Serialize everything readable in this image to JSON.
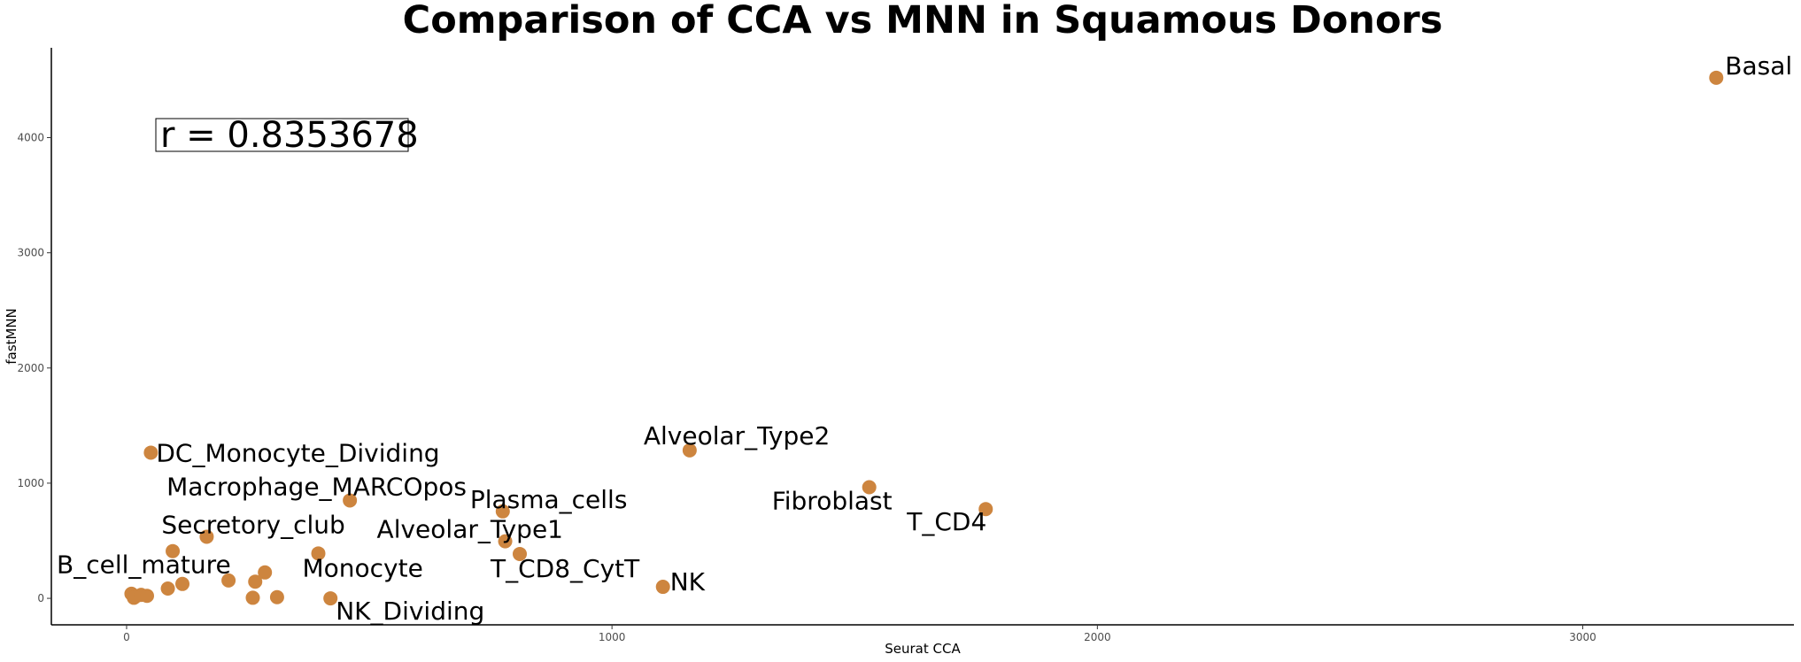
{
  "chart_data": {
    "type": "scatter",
    "title": "Comparison of CCA vs MNN in Squamous Donors",
    "xlabel": "Seurat CCA",
    "ylabel": "fastMNN",
    "xlim": [
      -155,
      3435
    ],
    "ylim": [
      -230,
      4780
    ],
    "xticks": [
      0,
      1000,
      2000,
      3000
    ],
    "yticks": [
      0,
      1000,
      2000,
      3000,
      4000
    ],
    "grid": false,
    "point_color": "#CD853F",
    "annotation": "r = 0.8353678",
    "points": [
      {
        "label": "Basal",
        "x": 3275,
        "y": 4520
      },
      {
        "label": "DC_Monocyte_Dividing",
        "x": 50,
        "y": 1265
      },
      {
        "label": "Alveolar_Type2",
        "x": 1160,
        "y": 1285
      },
      {
        "label": "Macrophage_MARCOpos",
        "x": 460,
        "y": 850
      },
      {
        "label": "Plasma_cells",
        "x": 775,
        "y": 755
      },
      {
        "label": "Fibroblast",
        "x": 1530,
        "y": 965
      },
      {
        "label": "T_CD4",
        "x": 1770,
        "y": 775
      },
      {
        "label": "Secretory_club",
        "x": 165,
        "y": 535
      },
      {
        "label": "Alveolar_Type1",
        "x": 780,
        "y": 495
      },
      {
        "label": "T_CD8_CytT",
        "x": 810,
        "y": 385
      },
      {
        "label": "Monocyte",
        "x": 395,
        "y": 390
      },
      {
        "label": "B_cell_mature",
        "x": 95,
        "y": 410
      },
      {
        "label": "NK",
        "x": 1105,
        "y": 100
      },
      {
        "label": "NK_Dividing",
        "x": 420,
        "y": 0
      },
      {
        "label": "",
        "x": 10,
        "y": 40
      },
      {
        "label": "",
        "x": 20,
        "y": 20
      },
      {
        "label": "",
        "x": 15,
        "y": 5
      },
      {
        "label": "",
        "x": 30,
        "y": 30
      },
      {
        "label": "",
        "x": 42,
        "y": 22
      },
      {
        "label": "",
        "x": 85,
        "y": 85
      },
      {
        "label": "",
        "x": 115,
        "y": 125
      },
      {
        "label": "",
        "x": 210,
        "y": 155
      },
      {
        "label": "",
        "x": 265,
        "y": 145
      },
      {
        "label": "",
        "x": 285,
        "y": 225
      },
      {
        "label": "",
        "x": 260,
        "y": 5
      },
      {
        "label": "",
        "x": 310,
        "y": 10
      }
    ]
  }
}
